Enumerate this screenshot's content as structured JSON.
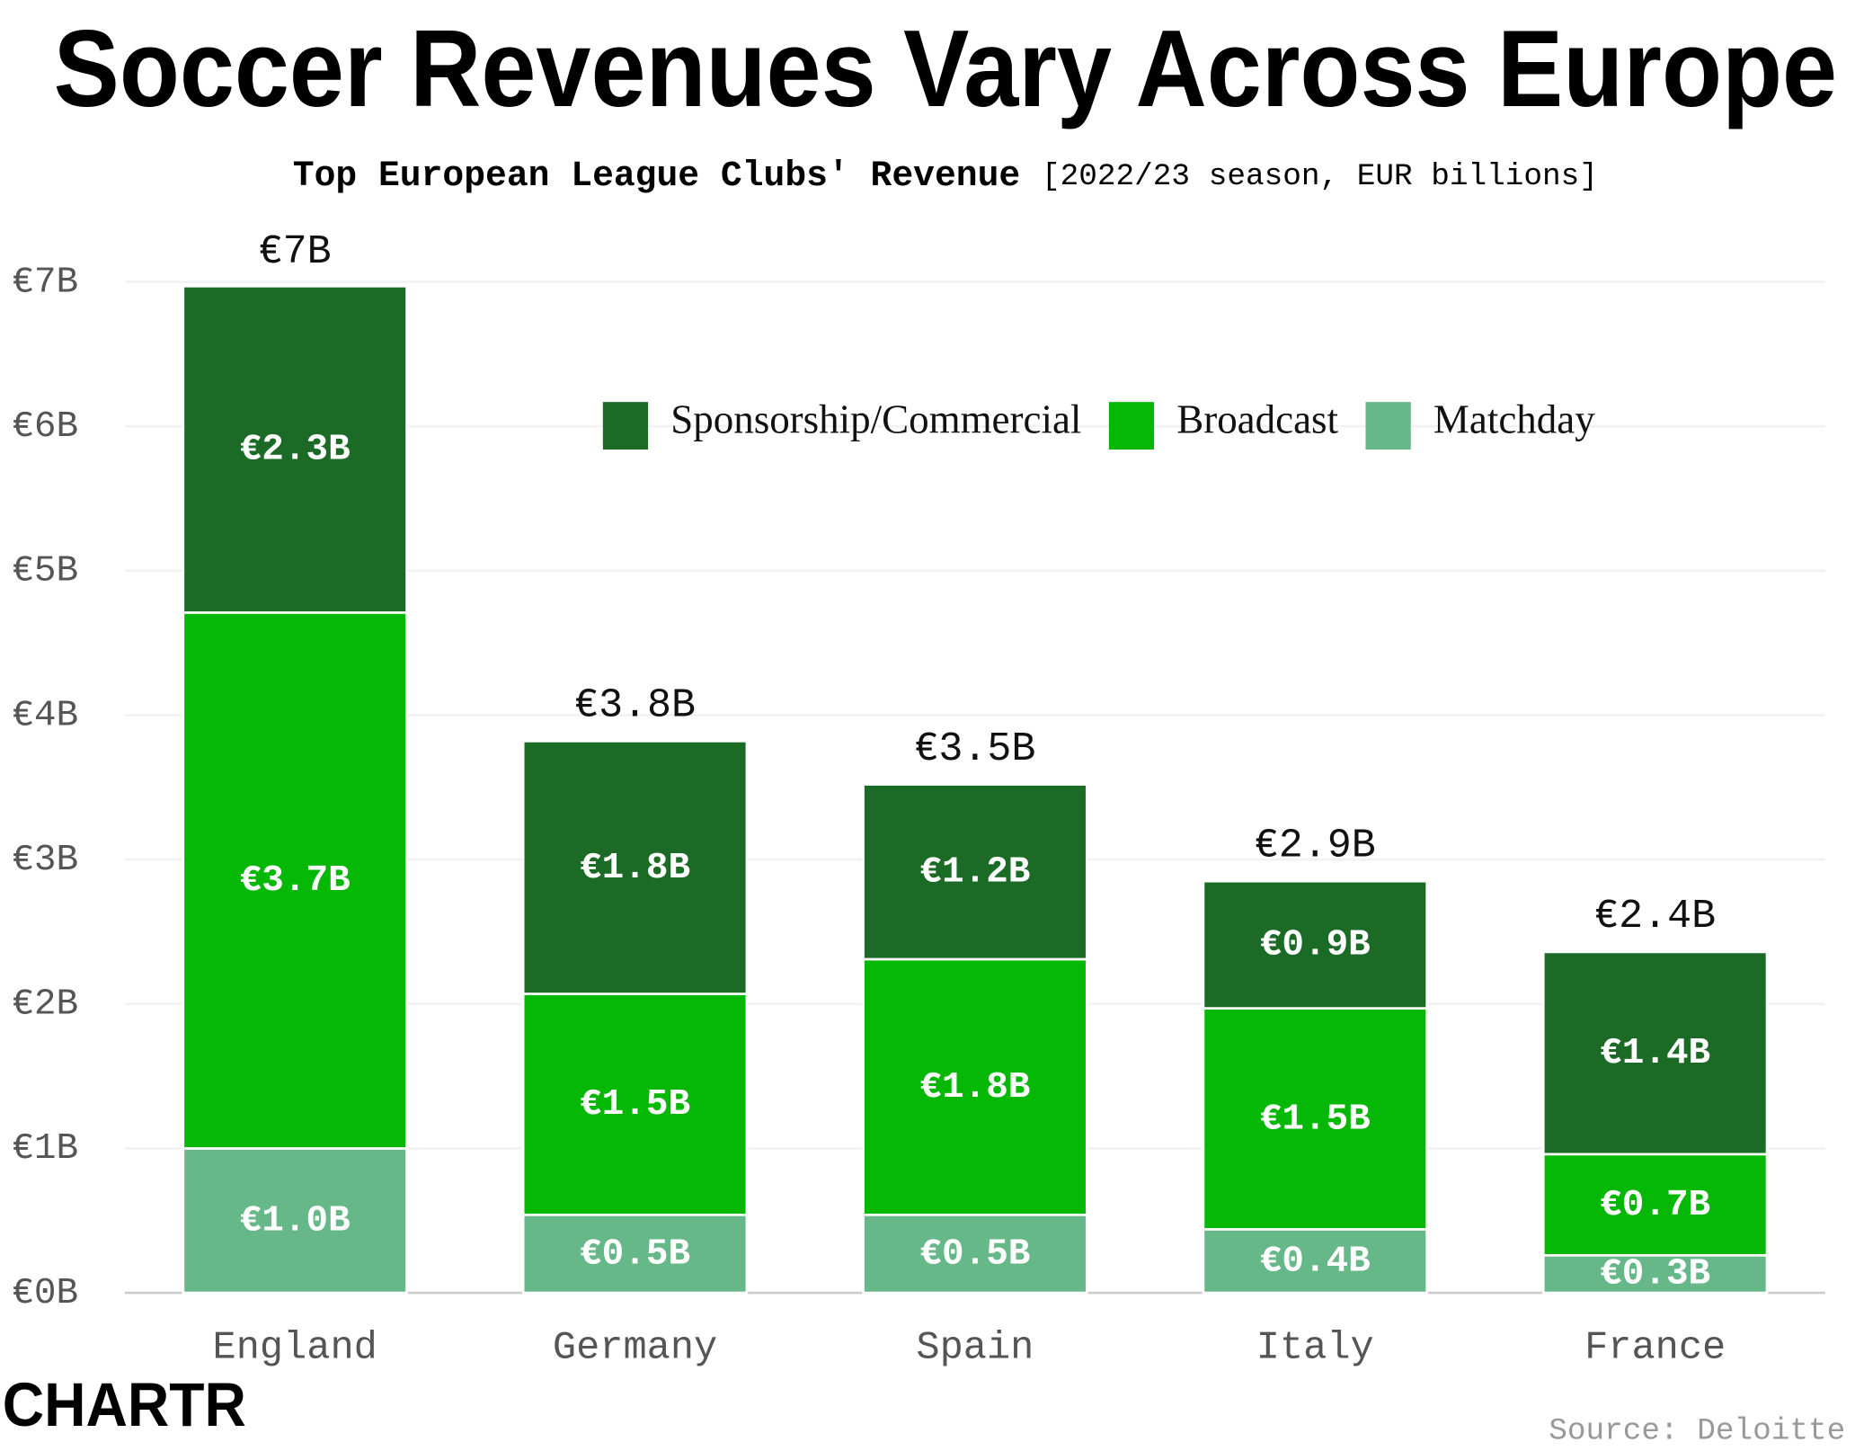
{
  "chart_data": {
    "type": "stacked-bar",
    "title": "Soccer Revenues Vary Across Europe",
    "subtitle": "Top European League Clubs' Revenue",
    "subtitle_note": "[2022/23 season, EUR billions]",
    "categories": [
      "England",
      "Germany",
      "Spain",
      "Italy",
      "France"
    ],
    "series": [
      {
        "name": "Matchday",
        "color": "#66b888",
        "values": [
          1.0,
          0.54,
          0.54,
          0.44,
          0.26
        ],
        "value_labels": [
          "€1.0B",
          "€0.5B",
          "€0.5B",
          "€0.4B",
          "€0.3B"
        ]
      },
      {
        "name": "Broadcast",
        "color": "#06b806",
        "values": [
          3.71,
          1.53,
          1.77,
          1.53,
          0.7
        ],
        "value_labels": [
          "€3.7B",
          "€1.5B",
          "€1.8B",
          "€1.5B",
          "€0.7B"
        ]
      },
      {
        "name": "Sponsorship/Commercial",
        "color": "#1b6b27",
        "values": [
          2.26,
          1.75,
          1.21,
          0.88,
          1.4
        ],
        "value_labels": [
          "€2.3B",
          "€1.8B",
          "€1.2B",
          "€0.9B",
          "€1.4B"
        ]
      }
    ],
    "totals": {
      "values": [
        6.96,
        3.82,
        3.52,
        2.85,
        2.36
      ],
      "value_labels": [
        "€7B",
        "€3.8B",
        "€3.5B",
        "€2.9B",
        "€2.4B"
      ]
    },
    "ylim": [
      0,
      7
    ],
    "yticks": [
      {
        "value": 0,
        "label": "€0B"
      },
      {
        "value": 1,
        "label": "€1B"
      },
      {
        "value": 2,
        "label": "€2B"
      },
      {
        "value": 3,
        "label": "€3B"
      },
      {
        "value": 4,
        "label": "€4B"
      },
      {
        "value": 5,
        "label": "€5B"
      },
      {
        "value": 6,
        "label": "€6B"
      },
      {
        "value": 7,
        "label": "€7B"
      }
    ],
    "grid": true,
    "logo": "CHARTR",
    "source": "Source: Deloitte"
  }
}
